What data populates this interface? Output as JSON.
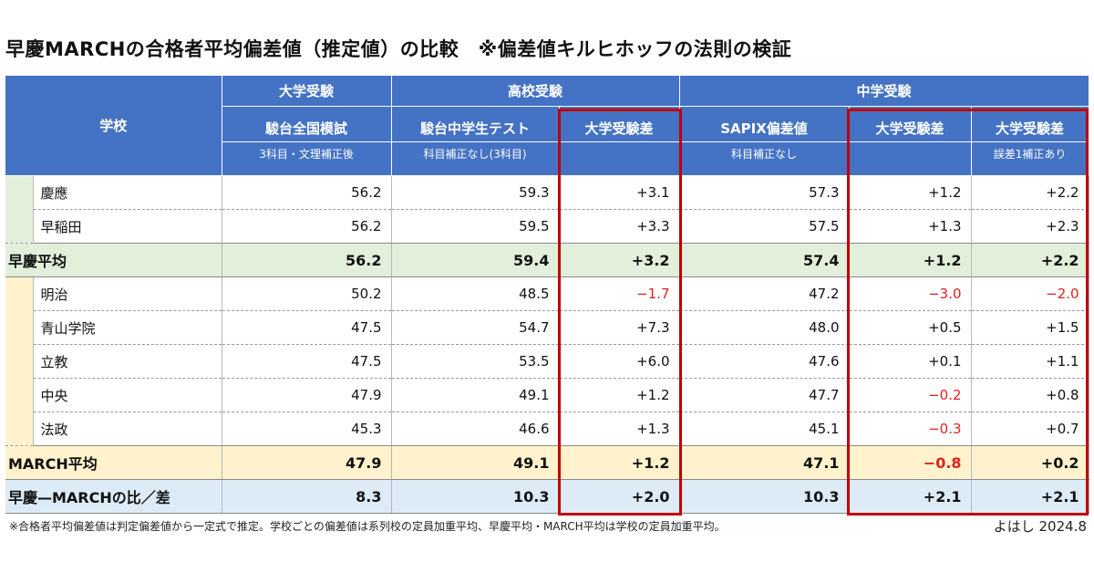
{
  "title": "早慶MARCHの合格者平均偏差値（推定値）の比較　※偏差値キルヒホッフの法則の検証",
  "header": {
    "school_label": "学校",
    "groups": {
      "univ": "大学受験",
      "high": "高校受験",
      "junior": "中学受験"
    },
    "cols": {
      "univ": {
        "name": "駿台全国模試",
        "sub": "3科目・文理補正後"
      },
      "high": {
        "name": "駿台中学生テスト",
        "sub": "科目補正なし(3科目)"
      },
      "high_diff": {
        "name": "大学受験差",
        "sub": ""
      },
      "sapix": {
        "name": "SAPIX偏差値",
        "sub": "科目補正なし"
      },
      "junior_diff": {
        "name": "大学受験差",
        "sub": ""
      },
      "junior_diff2": {
        "name": "大学受験差",
        "sub": "誤差1補正あり"
      }
    }
  },
  "rows": {
    "keio": {
      "name": "慶應",
      "univ": "56.2",
      "high": "59.3",
      "high_diff": "+3.1",
      "sapix": "57.3",
      "junior_diff": "+1.2",
      "junior_diff2": "+2.2"
    },
    "waseda": {
      "name": "早稲田",
      "univ": "56.2",
      "high": "59.5",
      "high_diff": "+3.3",
      "sapix": "57.5",
      "junior_diff": "+1.3",
      "junior_diff2": "+2.3"
    },
    "soukei_avg": {
      "name": "早慶平均",
      "univ": "56.2",
      "high": "59.4",
      "high_diff": "+3.2",
      "sapix": "57.4",
      "junior_diff": "+1.2",
      "junior_diff2": "+2.2"
    },
    "meiji": {
      "name": "明治",
      "univ": "50.2",
      "high": "48.5",
      "high_diff": "−1.7",
      "sapix": "47.2",
      "junior_diff": "−3.0",
      "junior_diff2": "−2.0"
    },
    "aoyama": {
      "name": "青山学院",
      "univ": "47.5",
      "high": "54.7",
      "high_diff": "+7.3",
      "sapix": "48.0",
      "junior_diff": "+0.5",
      "junior_diff2": "+1.5"
    },
    "rikkyo": {
      "name": "立教",
      "univ": "47.5",
      "high": "53.5",
      "high_diff": "+6.0",
      "sapix": "47.6",
      "junior_diff": "+0.1",
      "junior_diff2": "+1.1"
    },
    "chuo": {
      "name": "中央",
      "univ": "47.9",
      "high": "49.1",
      "high_diff": "+1.2",
      "sapix": "47.7",
      "junior_diff": "−0.2",
      "junior_diff2": "+0.8"
    },
    "hosei": {
      "name": "法政",
      "univ": "45.3",
      "high": "46.6",
      "high_diff": "+1.3",
      "sapix": "45.1",
      "junior_diff": "−0.3",
      "junior_diff2": "+0.7"
    },
    "march_avg": {
      "name": "MARCH平均",
      "univ": "47.9",
      "high": "49.1",
      "high_diff": "+1.2",
      "sapix": "47.1",
      "junior_diff": "−0.8",
      "junior_diff2": "+0.2"
    },
    "ratio": {
      "name": "早慶—MARCHの比／差",
      "univ": "8.3",
      "high": "10.3",
      "high_diff": "+2.0",
      "sapix": "10.3",
      "junior_diff": "+2.1",
      "junior_diff2": "+2.1"
    }
  },
  "colors": {
    "header_blue": "#4472c4",
    "soukei_green": "#e2efda",
    "march_yellow": "#fff2cc",
    "ratio_blue": "#ddebf7",
    "highlight_red": "#c00000",
    "negative_red": "#e02020"
  },
  "footnote": "※合格者平均偏差値は判定偏差値から一定式で推定。学校ごとの偏差値は系列校の定員加重平均、早慶平均・MARCH平均は学校の定員加重平均。",
  "signature": "よはし 2024.8"
}
